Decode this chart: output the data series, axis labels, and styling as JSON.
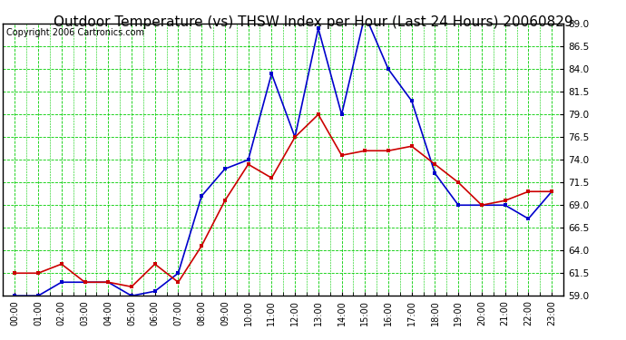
{
  "title": "Outdoor Temperature (vs) THSW Index per Hour (Last 24 Hours) 20060829",
  "copyright": "Copyright 2006 Cartronics.com",
  "hours": [
    "00:00",
    "01:00",
    "02:00",
    "03:00",
    "04:00",
    "05:00",
    "06:00",
    "07:00",
    "08:00",
    "09:00",
    "10:00",
    "11:00",
    "12:00",
    "13:00",
    "14:00",
    "15:00",
    "16:00",
    "17:00",
    "18:00",
    "19:00",
    "20:00",
    "21:00",
    "22:00",
    "23:00"
  ],
  "temp": [
    61.5,
    61.5,
    62.5,
    60.5,
    60.5,
    60.0,
    62.5,
    60.5,
    64.5,
    69.5,
    73.5,
    72.0,
    76.5,
    79.0,
    74.5,
    75.0,
    75.0,
    75.5,
    73.5,
    71.5,
    69.0,
    69.5,
    70.5,
    70.5
  ],
  "thsw": [
    59.0,
    59.0,
    60.5,
    60.5,
    60.5,
    59.0,
    59.5,
    61.5,
    70.0,
    73.0,
    74.0,
    83.5,
    76.5,
    88.5,
    79.0,
    90.0,
    84.0,
    80.5,
    72.5,
    69.0,
    69.0,
    69.0,
    67.5,
    70.5
  ],
  "ylim": [
    59.0,
    89.0
  ],
  "yticks": [
    59.0,
    61.5,
    64.0,
    66.5,
    69.0,
    71.5,
    74.0,
    76.5,
    79.0,
    81.5,
    84.0,
    86.5,
    89.0
  ],
  "temp_color": "#cc0000",
  "thsw_color": "#0000cc",
  "grid_color": "#00cc00",
  "bg_color": "#ffffff",
  "title_fontsize": 11,
  "copyright_fontsize": 7
}
